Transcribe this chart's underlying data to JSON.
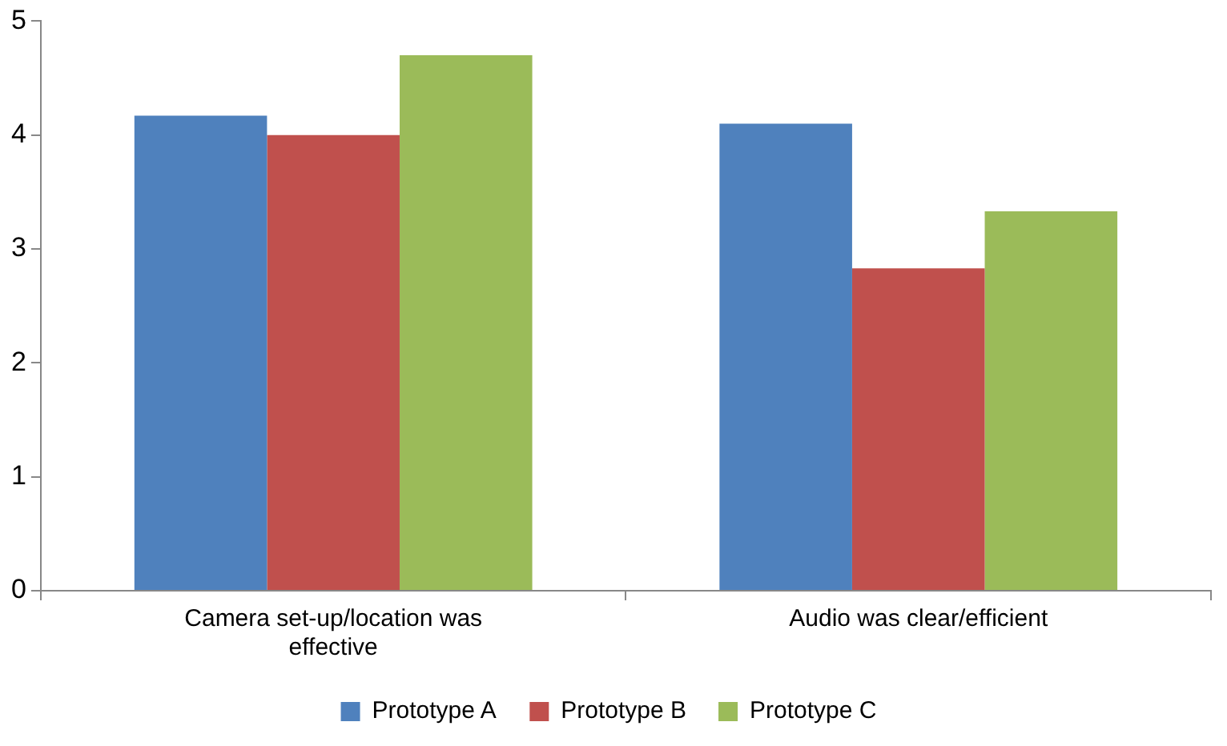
{
  "chart_data": {
    "type": "bar",
    "categories": [
      "Camera set-up/location was effective",
      "Audio was clear/efficient"
    ],
    "series": [
      {
        "name": "Prototype A",
        "color": "#4f81bd",
        "values": [
          4.17,
          4.1
        ]
      },
      {
        "name": "Prototype B",
        "color": "#c0504d",
        "values": [
          4.0,
          2.83
        ]
      },
      {
        "name": "Prototype C",
        "color": "#9bbb59",
        "values": [
          4.7,
          3.33
        ]
      }
    ],
    "ylim": [
      0,
      5
    ],
    "yticks": [
      0,
      1,
      2,
      3,
      4,
      5
    ],
    "grid": false,
    "legend": "bottom"
  }
}
